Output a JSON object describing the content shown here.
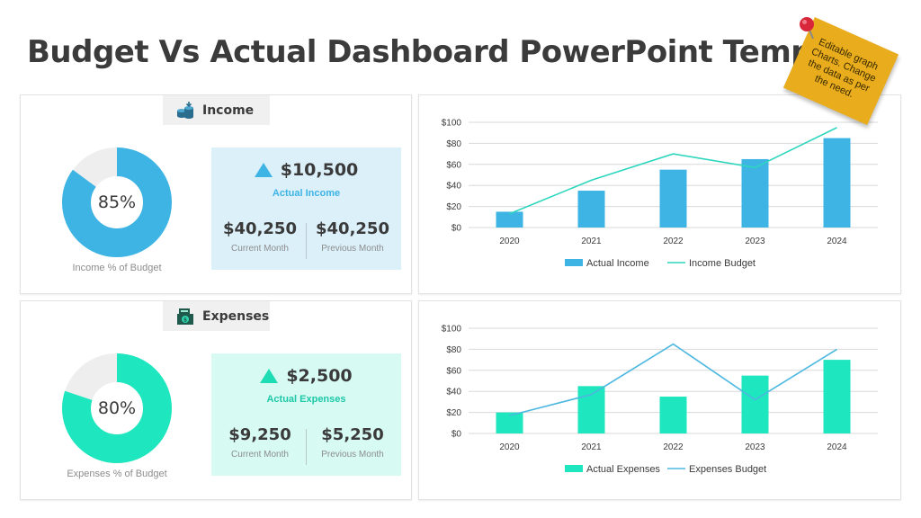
{
  "title": "Budget Vs Actual Dashboard PowerPoint Template",
  "note": "Editable graph Charts. Change the data as per the need.",
  "colors": {
    "income": "#3db4e4",
    "expenses": "#1ee6be",
    "donut_rest": "#eeeeee"
  },
  "income": {
    "tag_label": "Income",
    "icon": "coins-icon",
    "donut_percent": 85,
    "donut_label": "85%",
    "donut_caption": "Income % of Budget",
    "main_value": "$10,500",
    "main_label": "Actual Income",
    "current_value": "$40,250",
    "current_label": "Current Month",
    "previous_value": "$40,250",
    "previous_label": "Previous Month"
  },
  "expenses": {
    "tag_label": "Expenses",
    "icon": "cash-register-icon",
    "donut_percent": 80,
    "donut_label": "80%",
    "donut_caption": "Expenses % of Budget",
    "main_value": "$2,500",
    "main_label": "Actual Expenses",
    "current_value": "$9,250",
    "current_label": "Current Month",
    "previous_value": "$5,250",
    "previous_label": "Previous Month"
  },
  "chart_data": [
    {
      "type": "bar",
      "categories": [
        "2020",
        "2021",
        "2022",
        "2023",
        "2024"
      ],
      "ylim": [
        0,
        100
      ],
      "yticks": [
        "$0",
        "$20",
        "$40",
        "$60",
        "$80",
        "$100"
      ],
      "grid": true,
      "legend": "bottom",
      "series": [
        {
          "name": "Actual Income",
          "kind": "bar",
          "color": "#3db4e4",
          "values": [
            15,
            35,
            55,
            65,
            85
          ]
        },
        {
          "name": "Income Budget",
          "kind": "line",
          "color": "#2ed6be",
          "values": [
            13,
            45,
            70,
            57,
            95
          ]
        }
      ]
    },
    {
      "type": "bar",
      "categories": [
        "2020",
        "2021",
        "2022",
        "2023",
        "2024"
      ],
      "ylim": [
        0,
        100
      ],
      "yticks": [
        "$0",
        "$20",
        "$40",
        "$60",
        "$80",
        "$100"
      ],
      "grid": true,
      "legend": "bottom",
      "series": [
        {
          "name": "Actual Expenses",
          "kind": "bar",
          "color": "#1ee6be",
          "values": [
            20,
            45,
            35,
            55,
            70
          ]
        },
        {
          "name": "Expenses Budget",
          "kind": "line",
          "color": "#4cb8e0",
          "values": [
            17,
            37,
            85,
            32,
            80
          ]
        }
      ]
    }
  ]
}
